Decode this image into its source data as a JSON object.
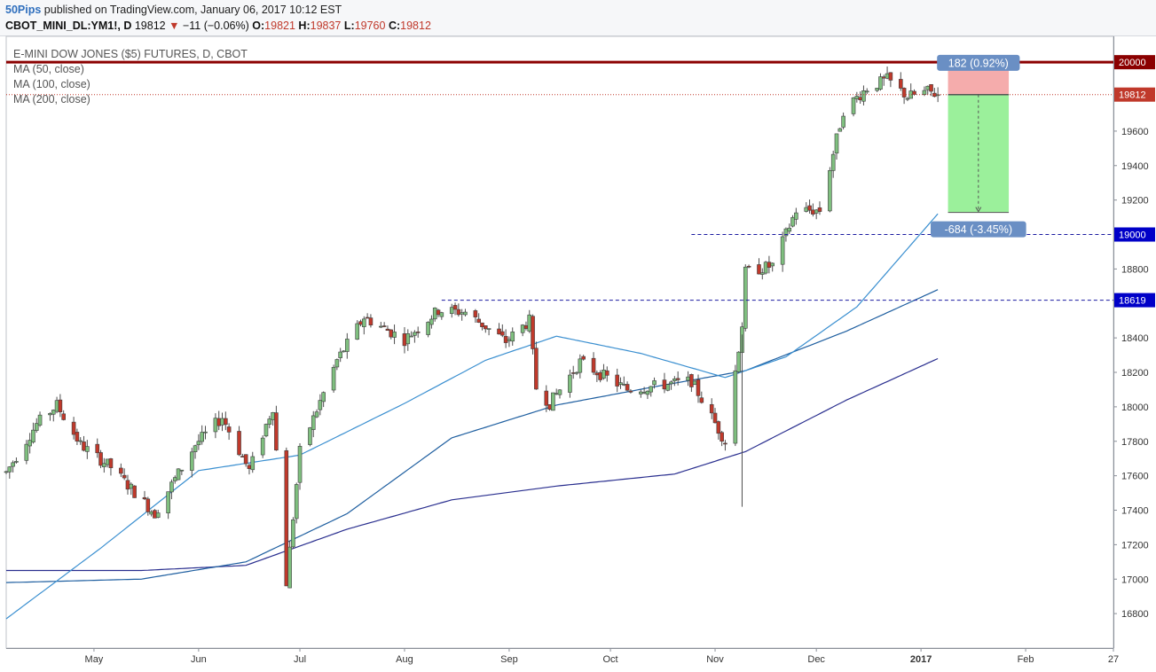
{
  "header": {
    "author": "50Pips",
    "published": " published on TradingView.com, January 06, 2017 10:12 EST",
    "symbol": "CBOT_MINI_DL:YM1!, D",
    "last": "19812",
    "arrow": "▼",
    "change": "−11 (−0.06%)",
    "o_label": "O:",
    "o": "19821",
    "h_label": "H:",
    "h": "19837",
    "l_label": "L:",
    "l": "19760",
    "c_label": "C:",
    "c": "19812"
  },
  "legend": {
    "title": "E-MINI DOW JONES ($5) FUTURES, D, CBOT",
    "ma50": "MA (50, close)",
    "ma100": "MA (100, close)",
    "ma200": "MA (200, close)"
  },
  "colors": {
    "up": "#7fbf7f",
    "down": "#c0392b",
    "ma50": "#3a8fd0",
    "ma100": "#1f5fa0",
    "ma200": "#2a2f8f",
    "resistance": "#8b0000",
    "support": "#1a1aa0",
    "tp_zone": "#90ee90",
    "sl_zone": "#f4a3a3",
    "badge": "#6a8fc4"
  },
  "chart_data": {
    "type": "candlestick",
    "title": "E-MINI DOW JONES ($5) FUTURES, D, CBOT",
    "ylim": [
      16600,
      20150
    ],
    "y_ticks": [
      16800,
      17000,
      17200,
      17400,
      17600,
      17800,
      18000,
      18200,
      18400,
      18600,
      18800,
      19000,
      19200,
      19400,
      19600,
      19800,
      20000
    ],
    "x_ticks": [
      "May",
      "Jun",
      "Jul",
      "Aug",
      "Sep",
      "Oct",
      "Nov",
      "Dec",
      "2017",
      "Feb",
      "27"
    ],
    "x_start": "2016-04-05",
    "x_end": "2017-02-27",
    "price_labels": [
      {
        "value": 20000,
        "text": "20000",
        "style": "resistance"
      },
      {
        "value": 19812,
        "text": "19812",
        "style": "last"
      },
      {
        "value": 19000,
        "text": "19000",
        "style": "support"
      },
      {
        "value": 18619,
        "text": "18619",
        "style": "support"
      }
    ],
    "levels": [
      {
        "value": 20000,
        "style": "resistance"
      },
      {
        "value": 19812,
        "style": "last"
      },
      {
        "value": 19000,
        "style": "support",
        "from": "2016-10-25"
      },
      {
        "value": 18619,
        "style": "support",
        "from": "2016-08-12"
      }
    ],
    "position": {
      "from": "2017-01-09",
      "to": "2017-01-27",
      "entry": 19812,
      "stop": 19994,
      "target": 19128,
      "stop_text": "182 (0.92%)",
      "target_text": "-684 (-3.45%)"
    },
    "ohlc_anchors": [
      [
        "2016-04-05",
        17620
      ],
      [
        "2016-04-14",
        17900
      ],
      [
        "2016-04-20",
        18010
      ],
      [
        "2016-04-27",
        17780
      ],
      [
        "2016-05-06",
        17650
      ],
      [
        "2016-05-19",
        17380
      ],
      [
        "2016-05-31",
        17780
      ],
      [
        "2016-06-08",
        17940
      ],
      [
        "2016-06-16",
        17630
      ],
      [
        "2016-06-23",
        18000
      ],
      [
        "2016-06-27",
        16980
      ],
      [
        "2016-07-01",
        17740
      ],
      [
        "2016-07-12",
        18270
      ],
      [
        "2016-07-20",
        18520
      ],
      [
        "2016-08-01",
        18390
      ],
      [
        "2016-08-11",
        18560
      ],
      [
        "2016-08-19",
        18550
      ],
      [
        "2016-08-31",
        18380
      ],
      [
        "2016-09-07",
        18500
      ],
      [
        "2016-09-09",
        18110
      ],
      [
        "2016-09-13",
        18020
      ],
      [
        "2016-09-22",
        18260
      ],
      [
        "2016-10-06",
        18100
      ],
      [
        "2016-10-14",
        18120
      ],
      [
        "2016-10-25",
        18150
      ],
      [
        "2016-11-04",
        17800
      ],
      [
        "2016-11-09",
        18480
      ],
      [
        "2016-11-10",
        18780
      ],
      [
        "2016-11-18",
        18820
      ],
      [
        "2016-11-25",
        19140
      ],
      [
        "2016-12-02",
        19140
      ],
      [
        "2016-12-09",
        19720
      ],
      [
        "2016-12-16",
        19850
      ],
      [
        "2016-12-22",
        19900
      ],
      [
        "2016-12-28",
        19800
      ],
      [
        "2017-01-03",
        19830
      ],
      [
        "2017-01-06",
        19812
      ]
    ],
    "ma50": [
      [
        "2016-04-05",
        16770
      ],
      [
        "2016-05-03",
        17180
      ],
      [
        "2016-06-01",
        17630
      ],
      [
        "2016-07-01",
        17720
      ],
      [
        "2016-08-01",
        18020
      ],
      [
        "2016-08-25",
        18270
      ],
      [
        "2016-09-15",
        18410
      ],
      [
        "2016-10-10",
        18310
      ],
      [
        "2016-11-04",
        18170
      ],
      [
        "2016-11-22",
        18290
      ],
      [
        "2016-12-13",
        18580
      ],
      [
        "2017-01-06",
        19120
      ]
    ],
    "ma100": [
      [
        "2016-04-05",
        16980
      ],
      [
        "2016-05-15",
        17000
      ],
      [
        "2016-06-15",
        17100
      ],
      [
        "2016-07-15",
        17380
      ],
      [
        "2016-08-15",
        17820
      ],
      [
        "2016-09-15",
        18010
      ],
      [
        "2016-10-15",
        18120
      ],
      [
        "2016-11-10",
        18210
      ],
      [
        "2016-12-10",
        18440
      ],
      [
        "2017-01-06",
        18680
      ]
    ],
    "ma200": [
      [
        "2016-04-05",
        17050
      ],
      [
        "2016-05-15",
        17050
      ],
      [
        "2016-06-15",
        17080
      ],
      [
        "2016-07-15",
        17290
      ],
      [
        "2016-08-15",
        17460
      ],
      [
        "2016-09-15",
        17540
      ],
      [
        "2016-10-20",
        17610
      ],
      [
        "2016-11-10",
        17740
      ],
      [
        "2016-12-10",
        18040
      ],
      [
        "2017-01-06",
        18280
      ]
    ]
  }
}
